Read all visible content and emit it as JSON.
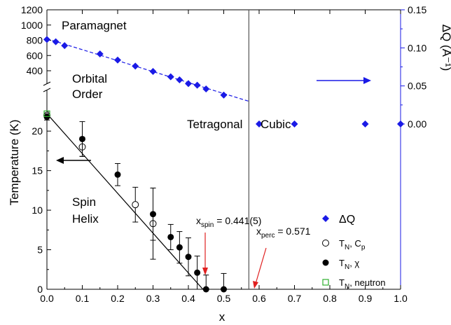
{
  "chart_data": {
    "type": "scatter",
    "x_axis": {
      "label": "x",
      "range": [
        0,
        1.0
      ],
      "ticks": [
        {
          "v": 0.0,
          "label": "0.0"
        },
        {
          "v": 0.1,
          "label": "0.1"
        },
        {
          "v": 0.2,
          "label": "0.2"
        },
        {
          "v": 0.3,
          "label": "0.3"
        },
        {
          "v": 0.4,
          "label": "0.4"
        },
        {
          "v": 0.5,
          "label": "0.5"
        },
        {
          "v": 0.6,
          "label": "0.6"
        },
        {
          "v": 0.7,
          "label": "0.7"
        },
        {
          "v": 0.8,
          "label": "0.8"
        },
        {
          "v": 0.9,
          "label": "0.9"
        },
        {
          "v": 1.0,
          "label": "1.0"
        }
      ]
    },
    "y_left_axis": {
      "label": "Temperature (K)",
      "lower_range": [
        0,
        24
      ],
      "lower_ticks": [
        {
          "v": 0,
          "label": "0"
        },
        {
          "v": 5,
          "label": "5"
        },
        {
          "v": 10,
          "label": "10"
        },
        {
          "v": 15,
          "label": "15"
        },
        {
          "v": 20,
          "label": "20"
        }
      ],
      "upper_range": [
        300,
        1200
      ],
      "upper_ticks": [
        {
          "v": 400,
          "label": "400"
        },
        {
          "v": 600,
          "label": "600"
        },
        {
          "v": 800,
          "label": "800"
        },
        {
          "v": 1000,
          "label": "1000"
        },
        {
          "v": 1200,
          "label": "1200"
        }
      ]
    },
    "y_right_axis": {
      "label": "ΔQ (Å⁻¹)",
      "range": [
        0,
        0.15
      ],
      "ticks": [
        {
          "v": 0.0,
          "label": "0.00"
        },
        {
          "v": 0.05,
          "label": "0.05"
        },
        {
          "v": 0.1,
          "label": "0.10"
        },
        {
          "v": 0.15,
          "label": "0.15"
        }
      ]
    },
    "series": [
      {
        "name": "ΔQ",
        "marker": "diamond",
        "color": "#1a1ae6",
        "axis": "right",
        "points": [
          {
            "x": 0.0,
            "y": 0.111
          },
          {
            "x": 0.025,
            "y": 0.108
          },
          {
            "x": 0.05,
            "y": 0.103
          },
          {
            "x": 0.15,
            "y": 0.092
          },
          {
            "x": 0.2,
            "y": 0.084
          },
          {
            "x": 0.25,
            "y": 0.076
          },
          {
            "x": 0.3,
            "y": 0.069
          },
          {
            "x": 0.35,
            "y": 0.062
          },
          {
            "x": 0.375,
            "y": 0.058
          },
          {
            "x": 0.4,
            "y": 0.053
          },
          {
            "x": 0.425,
            "y": 0.051
          },
          {
            "x": 0.45,
            "y": 0.046
          },
          {
            "x": 0.5,
            "y": 0.038
          },
          {
            "x": 0.6,
            "y": 0.0
          },
          {
            "x": 0.7,
            "y": 0.0
          },
          {
            "x": 0.9,
            "y": 0.0
          },
          {
            "x": 1.0,
            "y": 0.0
          }
        ]
      },
      {
        "name": "T_N, C_p",
        "marker": "open-circle",
        "color": "#000000",
        "axis": "left",
        "points": [
          {
            "x": 0.0,
            "y": 22.0
          },
          {
            "x": 0.1,
            "y": 18.0,
            "err": 1.2
          },
          {
            "x": 0.25,
            "y": 10.7,
            "err": 2.2
          },
          {
            "x": 0.3,
            "y": 8.3,
            "err": 4.5
          }
        ]
      },
      {
        "name": "T_N, χ",
        "marker": "filled-circle",
        "color": "#000000",
        "axis": "left",
        "points": [
          {
            "x": 0.0,
            "y": 21.8,
            "err": 0.4
          },
          {
            "x": 0.1,
            "y": 19.0,
            "err": 2.2
          },
          {
            "x": 0.2,
            "y": 14.5,
            "err": 1.4
          },
          {
            "x": 0.3,
            "y": 9.5,
            "err": 3.3
          },
          {
            "x": 0.35,
            "y": 6.6,
            "err": 1.6
          },
          {
            "x": 0.375,
            "y": 5.3,
            "err": 2.0
          },
          {
            "x": 0.4,
            "y": 4.1,
            "err": 2.4
          },
          {
            "x": 0.425,
            "y": 2.1,
            "err": 2.1
          },
          {
            "x": 0.45,
            "y": 0.0,
            "err": 1.8
          },
          {
            "x": 0.5,
            "y": 0.0,
            "err": 2.0
          }
        ]
      },
      {
        "name": "T_N, neutron",
        "marker": "open-square",
        "color": "#2fb02f",
        "axis": "left",
        "points": [
          {
            "x": 0.0,
            "y": 22.2
          }
        ]
      }
    ],
    "fit_line_left": [
      {
        "x": 0.0,
        "y": 22.2
      },
      {
        "x": 0.441,
        "y": 0.0
      }
    ],
    "fit_line_right_dashed": [
      {
        "x": 0.0,
        "y": 0.112
      },
      {
        "x": 0.571,
        "y": 0.0298
      }
    ],
    "vertical_line_x": 0.571,
    "legend": [
      {
        "marker": "diamond",
        "label": "ΔQ"
      },
      {
        "marker": "open-circle",
        "label_main": "T",
        "label_sub": "N",
        "label_rest": ", C",
        "label_sub2": "p"
      },
      {
        "marker": "filled-circle",
        "label_main": "T",
        "label_sub": "N",
        "label_rest": ", χ"
      },
      {
        "marker": "open-square",
        "label_main": "T",
        "label_sub": "N",
        "label_rest": ", neutron"
      }
    ],
    "region_labels": {
      "paramagnet": "Paramagnet",
      "orbital": "Orbital",
      "order": "Order",
      "tetragonal": "Tetragonal",
      "cubic": "Cubic",
      "spin": "Spin",
      "helix": "Helix"
    },
    "annotations": {
      "xspin_main": "x",
      "xspin_sub": "spin",
      "xspin_value": " = 0.441(5)",
      "xperc_main": "x",
      "xperc_sub": "perc",
      "xperc_value": " = 0.571"
    }
  }
}
